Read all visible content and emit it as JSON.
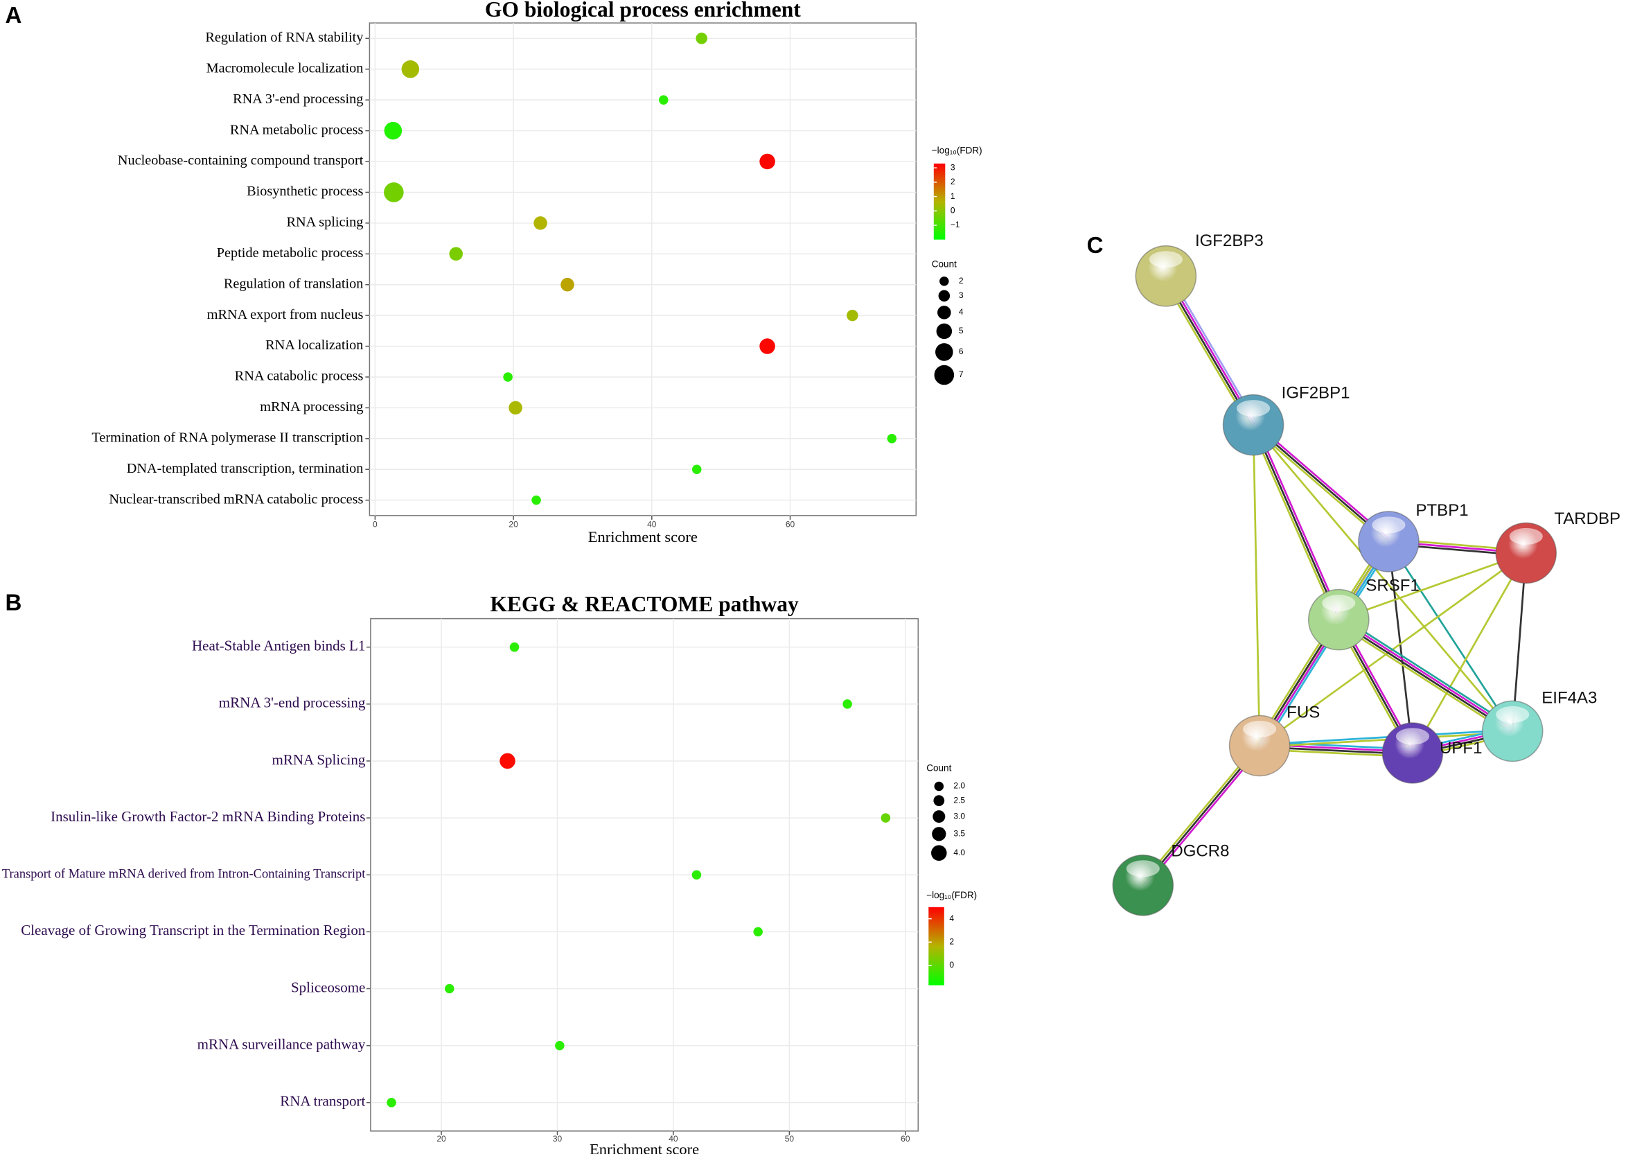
{
  "chart_data": [
    {
      "type": "bubble",
      "panel": "A",
      "title": "GO biological process enrichment",
      "x_label": "Enrichment score",
      "categories": [
        "Regulation of RNA stability",
        "Macromolecule localization",
        "RNA 3'-end processing",
        "RNA metabolic process",
        "Nucleobase-containing compound transport",
        "Biosynthetic process",
        "RNA splicing",
        "Peptide metabolic process",
        "Regulation of translation",
        "mRNA export from nucleus",
        "RNA localization",
        "RNA catabolic process",
        "mRNA processing",
        "Termination of RNA polymerase II transcription",
        "DNA-templated transcription, termination",
        "Nuclear-transcribed mRNA catabolic process"
      ],
      "x": [
        47.2,
        5.1,
        41.7,
        2.6,
        56.7,
        2.7,
        23.9,
        11.7,
        27.8,
        69.0,
        56.7,
        19.2,
        20.3,
        74.7,
        46.5,
        23.3
      ],
      "sizes": [
        3,
        6,
        2,
        6,
        5,
        7,
        4,
        4,
        4,
        3,
        5,
        2,
        4,
        2,
        2,
        2
      ],
      "color_values": [
        -0.3,
        0.4,
        -1.4,
        -1.5,
        3.2,
        -0.3,
        0.6,
        -0.2,
        0.9,
        0.4,
        3.2,
        -1.4,
        0.5,
        -1.4,
        -1.4,
        -1.4
      ],
      "xlim": [
        -0.8,
        78.2
      ],
      "xticks": [
        0,
        20,
        40,
        60
      ],
      "grid": true,
      "size_legend": {
        "title": "Count",
        "ticks": [
          2,
          3,
          4,
          5,
          6,
          7
        ]
      },
      "color_legend": {
        "title": "−log₁₀(FDR)",
        "lim": [
          -2,
          3.3
        ],
        "ticks": [
          3,
          2,
          1,
          0,
          {
            "value": -1,
            "label": "−1"
          }
        ],
        "colors": [
          "#00ff00",
          "#b4b400",
          "#ff0000"
        ]
      },
      "label_color": "#000000"
    },
    {
      "type": "bubble",
      "panel": "B",
      "title": "KEGG & REACTOME pathway",
      "x_label": "Enrichment score",
      "categories": [
        "Heat-Stable Antigen binds L1",
        "mRNA 3'-end processing",
        "mRNA Splicing",
        "Insulin-like Growth Factor-2 mRNA Binding Proteins",
        "Transport of Mature mRNA derived from Intron-Containing Transcript",
        "Cleavage of Growing Transcript in the Termination Region",
        "Spliceosome",
        "mRNA surveillance pathway",
        "RNA transport"
      ],
      "x": [
        26.3,
        55.0,
        25.7,
        58.3,
        42.0,
        47.3,
        20.7,
        30.2,
        15.7
      ],
      "sizes": [
        2,
        2,
        4,
        2,
        2,
        2,
        2,
        2,
        2
      ],
      "color_values": [
        -0.9,
        -0.9,
        4.8,
        0.2,
        -0.9,
        -0.9,
        -0.9,
        -0.9,
        -0.9
      ],
      "xlim": [
        13.9,
        61.1
      ],
      "xticks": [
        20,
        30,
        40,
        50,
        60
      ],
      "grid": true,
      "size_legend": {
        "title": "Count",
        "ticks": [
          {
            "value": 2,
            "label": "2.0"
          },
          {
            "value": 2.5,
            "label": "2.5"
          },
          {
            "value": 3,
            "label": "3.0"
          },
          {
            "value": 3.5,
            "label": "3.5"
          },
          {
            "value": 4,
            "label": "4.0"
          }
        ]
      },
      "color_legend": {
        "title": "−log₁₀(FDR)",
        "lim": [
          -1.7,
          5
        ],
        "ticks": [
          4,
          2,
          0
        ],
        "colors": [
          "#00ff00",
          "#b4b400",
          "#ff0000"
        ]
      },
      "label_color": "#2d0b4e"
    }
  ],
  "network": {
    "panel": "C",
    "nodes": [
      "IGF2BP3",
      "IGF2BP1",
      "PTBP1",
      "TARDBP",
      "SRSF1",
      "FUS",
      "UPF1",
      "EIF4A3",
      "DGCR8"
    ]
  }
}
